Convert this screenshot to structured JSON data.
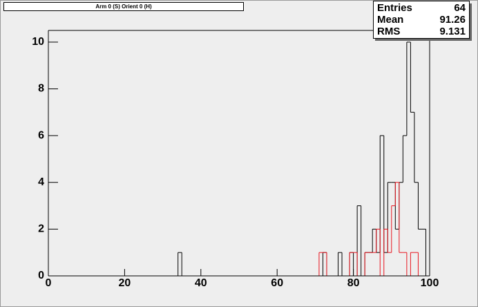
{
  "chart_data": {
    "type": "histogram",
    "title": "Arm 0 (S) Orient 0 (H)",
    "stats": {
      "labels": [
        "Entries",
        "Mean",
        "RMS"
      ],
      "values": [
        64,
        91.26,
        9.131
      ]
    },
    "bins": [
      0,
      1,
      2,
      3,
      4,
      5,
      6,
      7,
      8,
      9,
      10,
      11,
      12,
      13,
      14,
      15,
      16,
      17,
      18,
      19,
      20,
      21,
      22,
      23,
      24,
      25,
      26,
      27,
      28,
      29,
      30,
      31,
      32,
      33,
      34,
      35,
      36,
      37,
      38,
      39,
      40,
      41,
      42,
      43,
      44,
      45,
      46,
      47,
      48,
      49,
      50,
      51,
      52,
      53,
      54,
      55,
      56,
      57,
      58,
      59,
      60,
      61,
      62,
      63,
      64,
      65,
      66,
      67,
      68,
      69,
      70,
      71,
      72,
      73,
      74,
      75,
      76,
      77,
      78,
      79,
      80,
      81,
      82,
      83,
      84,
      85,
      86,
      87,
      88,
      89,
      90,
      91,
      92,
      93,
      94,
      95,
      96,
      97,
      98,
      99,
      100
    ],
    "series": [
      {
        "color": "#000000",
        "values": [
          0,
          0,
          0,
          0,
          0,
          0,
          0,
          0,
          0,
          0,
          0,
          0,
          0,
          0,
          0,
          0,
          0,
          0,
          0,
          0,
          0,
          0,
          0,
          0,
          0,
          0,
          0,
          0,
          0,
          0,
          0,
          0,
          0,
          0,
          1,
          0,
          0,
          0,
          0,
          0,
          0,
          0,
          0,
          0,
          0,
          0,
          0,
          0,
          0,
          0,
          0,
          0,
          0,
          0,
          0,
          0,
          0,
          0,
          0,
          0,
          0,
          0,
          0,
          0,
          0,
          0,
          0,
          0,
          0,
          0,
          0,
          0,
          1,
          0,
          0,
          0,
          1,
          0,
          0,
          1,
          0,
          3,
          0,
          1,
          1,
          2,
          1,
          6,
          1,
          4,
          4,
          2,
          4,
          6,
          10,
          7,
          4,
          2,
          2,
          0
        ]
      },
      {
        "color": "#e8141e",
        "values": [
          0,
          0,
          0,
          0,
          0,
          0,
          0,
          0,
          0,
          0,
          0,
          0,
          0,
          0,
          0,
          0,
          0,
          0,
          0,
          0,
          0,
          0,
          0,
          0,
          0,
          0,
          0,
          0,
          0,
          0,
          0,
          0,
          0,
          0,
          0,
          0,
          0,
          0,
          0,
          0,
          0,
          0,
          0,
          0,
          0,
          0,
          0,
          0,
          0,
          0,
          0,
          0,
          0,
          0,
          0,
          0,
          0,
          0,
          0,
          0,
          0,
          0,
          0,
          0,
          0,
          0,
          0,
          0,
          0,
          0,
          0,
          1,
          1,
          0,
          0,
          0,
          0,
          0,
          0,
          1,
          1,
          0,
          0,
          1,
          1,
          1,
          2,
          0,
          2,
          1,
          3,
          4,
          1,
          1,
          0,
          1,
          1,
          0,
          0,
          0
        ]
      }
    ],
    "xlim": [
      0,
      100
    ],
    "xticks": [
      0,
      20,
      40,
      60,
      80,
      100
    ],
    "ylim": [
      0,
      10.5
    ],
    "yticks": [
      0,
      2,
      4,
      6,
      8,
      10
    ]
  }
}
